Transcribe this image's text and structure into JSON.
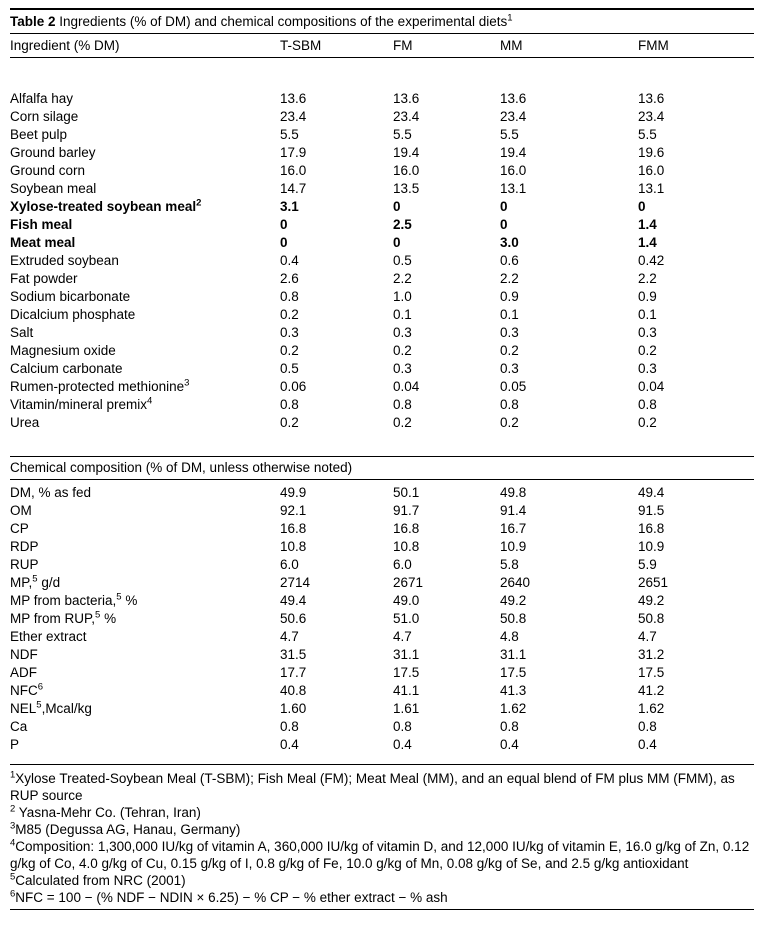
{
  "caption": {
    "label": "Table 2",
    "text": " Ingredients (% of DM) and chemical compositions of the experimental diets",
    "sup": "1"
  },
  "table": {
    "columns": [
      "Ingredient (% DM)",
      "T-SBM",
      "FM",
      "MM",
      "FMM"
    ],
    "section_header": "Chemical composition (% of DM, unless otherwise noted)",
    "ingredients": [
      {
        "pre": "Alfalfa hay",
        "sup": "",
        "post": "",
        "bold": false,
        "values": [
          "13.6",
          "13.6",
          "13.6",
          "13.6"
        ]
      },
      {
        "pre": "Corn silage",
        "sup": "",
        "post": "",
        "bold": false,
        "values": [
          "23.4",
          "23.4",
          "23.4",
          "23.4"
        ]
      },
      {
        "pre": "Beet pulp",
        "sup": "",
        "post": "",
        "bold": false,
        "values": [
          "5.5",
          "5.5",
          "5.5",
          "5.5"
        ]
      },
      {
        "pre": "Ground barley",
        "sup": "",
        "post": "",
        "bold": false,
        "values": [
          "17.9",
          "19.4",
          "19.4",
          "19.6"
        ]
      },
      {
        "pre": "Ground corn",
        "sup": "",
        "post": "",
        "bold": false,
        "values": [
          "16.0",
          "16.0",
          "16.0",
          "16.0"
        ]
      },
      {
        "pre": "Soybean meal",
        "sup": "",
        "post": "",
        "bold": false,
        "values": [
          "14.7",
          "13.5",
          "13.1",
          "13.1"
        ]
      },
      {
        "pre": "Xylose-treated soybean meal",
        "sup": "2",
        "post": "",
        "bold": true,
        "values": [
          "3.1",
          "0",
          "0",
          "0"
        ]
      },
      {
        "pre": "Fish meal",
        "sup": "",
        "post": "",
        "bold": true,
        "values": [
          "0",
          "2.5",
          "0",
          "1.4"
        ]
      },
      {
        "pre": "Meat meal",
        "sup": "",
        "post": "",
        "bold": true,
        "values": [
          "0",
          "0",
          "3.0",
          "1.4"
        ]
      },
      {
        "pre": "Extruded soybean",
        "sup": "",
        "post": "",
        "bold": false,
        "values": [
          "0.4",
          "0.5",
          "0.6",
          "0.42"
        ]
      },
      {
        "pre": "Fat powder",
        "sup": "",
        "post": "",
        "bold": false,
        "values": [
          "2.6",
          "2.2",
          "2.2",
          "2.2"
        ]
      },
      {
        "pre": "Sodium bicarbonate",
        "sup": "",
        "post": "",
        "bold": false,
        "values": [
          "0.8",
          "1.0",
          "0.9",
          "0.9"
        ]
      },
      {
        "pre": "Dicalcium phosphate",
        "sup": "",
        "post": "",
        "bold": false,
        "values": [
          "0.2",
          "0.1",
          "0.1",
          "0.1"
        ]
      },
      {
        "pre": "Salt",
        "sup": "",
        "post": "",
        "bold": false,
        "values": [
          "0.3",
          "0.3",
          "0.3",
          "0.3"
        ]
      },
      {
        "pre": "Magnesium oxide",
        "sup": "",
        "post": "",
        "bold": false,
        "values": [
          "0.2",
          "0.2",
          "0.2",
          "0.2"
        ]
      },
      {
        "pre": "Calcium carbonate",
        "sup": "",
        "post": "",
        "bold": false,
        "values": [
          "0.5",
          "0.3",
          "0.3",
          "0.3"
        ]
      },
      {
        "pre": "Rumen-protected methionine",
        "sup": "3",
        "post": "",
        "bold": false,
        "values": [
          "0.06",
          "0.04",
          "0.05",
          "0.04"
        ]
      },
      {
        "pre": "Vitamin/mineral premix",
        "sup": "4",
        "post": "",
        "bold": false,
        "values": [
          "0.8",
          "0.8",
          "0.8",
          "0.8"
        ]
      },
      {
        "pre": "Urea",
        "sup": "",
        "post": "",
        "bold": false,
        "values": [
          "0.2",
          "0.2",
          "0.2",
          "0.2"
        ]
      }
    ],
    "chemical": [
      {
        "pre": "DM, % as fed",
        "sup": "",
        "post": "",
        "bold": false,
        "values": [
          "49.9",
          "50.1",
          "49.8",
          "49.4"
        ]
      },
      {
        "pre": "OM",
        "sup": "",
        "post": "",
        "bold": false,
        "values": [
          "92.1",
          "91.7",
          "91.4",
          "91.5"
        ]
      },
      {
        "pre": "CP",
        "sup": "",
        "post": "",
        "bold": false,
        "values": [
          "16.8",
          "16.8",
          "16.7",
          "16.8"
        ]
      },
      {
        "pre": "RDP",
        "sup": "",
        "post": "",
        "bold": false,
        "values": [
          "10.8",
          "10.8",
          "10.9",
          "10.9"
        ]
      },
      {
        "pre": "RUP",
        "sup": "",
        "post": "",
        "bold": false,
        "values": [
          "6.0",
          "6.0",
          "5.8",
          "5.9"
        ]
      },
      {
        "pre": "MP,",
        "sup": "5",
        "post": " g/d",
        "bold": false,
        "values": [
          "2714",
          "2671",
          "2640",
          "2651"
        ]
      },
      {
        "pre": "MP from bacteria,",
        "sup": "5",
        "post": " %",
        "bold": false,
        "values": [
          "49.4",
          "49.0",
          "49.2",
          "49.2"
        ]
      },
      {
        "pre": "MP from RUP,",
        "sup": "5",
        "post": " %",
        "bold": false,
        "values": [
          "50.6",
          "51.0",
          "50.8",
          "50.8"
        ]
      },
      {
        "pre": "Ether extract",
        "sup": "",
        "post": "",
        "bold": false,
        "values": [
          "4.7",
          "4.7",
          "4.8",
          "4.7"
        ]
      },
      {
        "pre": "NDF",
        "sup": "",
        "post": "",
        "bold": false,
        "values": [
          "31.5",
          "31.1",
          "31.1",
          "31.2"
        ]
      },
      {
        "pre": "ADF",
        "sup": "",
        "post": "",
        "bold": false,
        "values": [
          "17.7",
          "17.5",
          "17.5",
          "17.5"
        ]
      },
      {
        "pre": "NFC",
        "sup": "6",
        "post": "",
        "bold": false,
        "values": [
          "40.8",
          "41.1",
          "41.3",
          "41.2"
        ]
      },
      {
        "pre": "NEL",
        "sup": "5",
        "post": ",Mcal/kg",
        "bold": false,
        "values": [
          "1.60",
          "1.61",
          "1.62",
          "1.62"
        ]
      },
      {
        "pre": "Ca",
        "sup": "",
        "post": "",
        "bold": false,
        "values": [
          "0.8",
          "0.8",
          "0.8",
          "0.8"
        ]
      },
      {
        "pre": "P",
        "sup": "",
        "post": "",
        "bold": false,
        "values": [
          "0.4",
          "0.4",
          "0.4",
          "0.4"
        ]
      }
    ]
  },
  "footnotes": [
    {
      "sup": "1",
      "text": "Xylose Treated-Soybean Meal (T-SBM); Fish Meal (FM); Meat Meal (MM), and an equal blend of FM plus MM (FMM), as RUP source"
    },
    {
      "sup": "2",
      "text": " Yasna-Mehr Co. (Tehran, Iran)"
    },
    {
      "sup": "3",
      "text": "M85 (Degussa AG, Hanau, Germany)"
    },
    {
      "sup": "4",
      "text": "Composition: 1,300,000 IU/kg of vitamin A, 360,000 IU/kg of vitamin D, and 12,000 IU/kg of vitamin E, 16.0 g/kg of Zn, 0.12 g/kg of Co, 4.0 g/kg of Cu, 0.15 g/kg of I, 0.8 g/kg of Fe, 10.0 g/kg of Mn, 0.08 g/kg of Se, and 2.5 g/kg antioxidant"
    },
    {
      "sup": "5",
      "text": "Calculated from NRC (2001)"
    },
    {
      "sup": "6",
      "text": "NFC = 100 − (% NDF − NDIN × 6.25) − % CP − % ether extract − % ash"
    }
  ]
}
